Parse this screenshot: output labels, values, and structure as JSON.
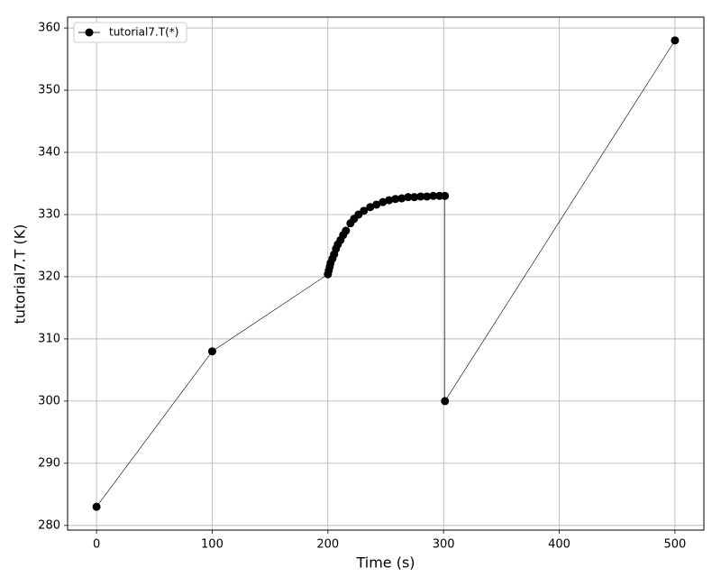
{
  "chart_data": {
    "type": "line",
    "xlabel": "Time (s)",
    "ylabel": "tutorial7.T (K)",
    "x": [
      0,
      100,
      200,
      200.8,
      201.6,
      202.3,
      203.9,
      205.4,
      207.0,
      208.6,
      210.9,
      213.2,
      215.6,
      219.5,
      222.6,
      226.5,
      231.1,
      236.6,
      242.0,
      247.5,
      252.9,
      258.4,
      263.8,
      269.3,
      274.7,
      280.2,
      285.6,
      291.1,
      296.5,
      301.2,
      301.2,
      500
    ],
    "series": [
      {
        "name": "tutorial7.T(*)",
        "color": "#000000",
        "values": [
          283,
          308,
          320.4,
          321.0,
          321.6,
          322.2,
          322.9,
          323.6,
          324.5,
          325.2,
          325.9,
          326.7,
          327.4,
          328.6,
          329.3,
          330.0,
          330.6,
          331.2,
          331.6,
          332.0,
          332.3,
          332.5,
          332.6,
          332.8,
          332.8,
          332.9,
          332.9,
          333.0,
          333.0,
          333.0,
          300,
          358
        ]
      }
    ],
    "xlim": [
      -25,
      525
    ],
    "ylim": [
      279.25,
      361.75
    ],
    "xticks": [
      0,
      100,
      200,
      300,
      400,
      500
    ],
    "yticks": [
      280,
      290,
      300,
      310,
      320,
      330,
      340,
      350,
      360
    ],
    "grid": true,
    "legend": "upper left"
  }
}
